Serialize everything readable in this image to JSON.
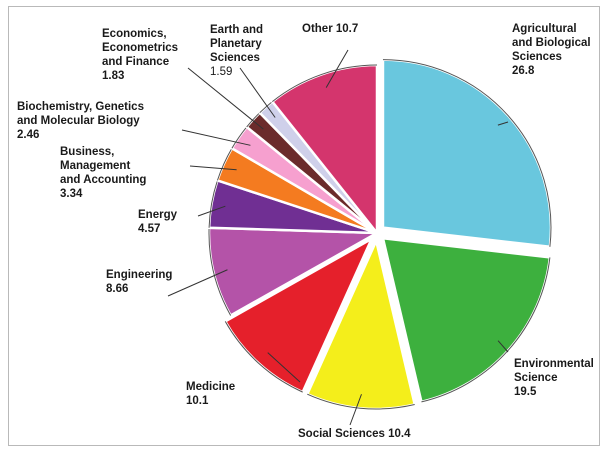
{
  "chart_data": {
    "type": "pie",
    "title": "",
    "legend": "none",
    "slices": [
      {
        "label": "Agricultural and Biological Sciences",
        "label_lines": [
          "Agricultural",
          "and Biological",
          "Sciences"
        ],
        "value": 26.8,
        "value_text": "26.8",
        "color": "#69c7de",
        "exploded": true
      },
      {
        "label": "Environmental Science",
        "label_lines": [
          "Environmental",
          "Science"
        ],
        "value": 19.5,
        "value_text": "19.5",
        "color": "#3db03e",
        "exploded": true
      },
      {
        "label": "Social Sciences",
        "label_lines": [
          "Social Sciences 10.4"
        ],
        "value": 10.4,
        "value_text": "",
        "color": "#f4ee1b",
        "exploded": true
      },
      {
        "label": "Medicine",
        "label_lines": [
          "Medicine"
        ],
        "value": 10.1,
        "value_text": "10.1",
        "color": "#e5202b",
        "exploded": true
      },
      {
        "label": "Engineering",
        "label_lines": [
          "Engineering"
        ],
        "value": 8.66,
        "value_text": "8.66",
        "color": "#b453a8",
        "exploded": false
      },
      {
        "label": "Energy",
        "label_lines": [
          "Energy"
        ],
        "value": 4.57,
        "value_text": "4.57",
        "color": "#702f93",
        "exploded": false
      },
      {
        "label": "Business, Management and Accounting",
        "label_lines": [
          "Business,",
          "Management",
          "and Accounting"
        ],
        "value": 3.34,
        "value_text": "3.34",
        "color": "#f47b20",
        "exploded": false
      },
      {
        "label": "Biochemistry, Genetics and Molecular Biology",
        "label_lines": [
          "Biochemistry, Genetics",
          "and Molecular Biology"
        ],
        "value": 2.46,
        "value_text": "2.46",
        "color": "#f6a0cf",
        "exploded": false
      },
      {
        "label": "Economics, Econometrics and Finance",
        "label_lines": [
          "Economics,",
          "Econometrics",
          "and Finance"
        ],
        "value": 1.83,
        "value_text": "1.83",
        "color": "#6b2b2b",
        "exploded": false
      },
      {
        "label": "Earth and Planetary Sciences",
        "label_lines": [
          "Earth and",
          "Planetary",
          "Sciences"
        ],
        "value": 1.59,
        "value_text": "1.59",
        "color": "#cfd0ea",
        "exploded": false
      },
      {
        "label": "Other",
        "label_lines": [
          "Other 10.7"
        ],
        "value": 10.7,
        "value_text": "",
        "color": "#d4356d",
        "exploded": false
      }
    ]
  }
}
